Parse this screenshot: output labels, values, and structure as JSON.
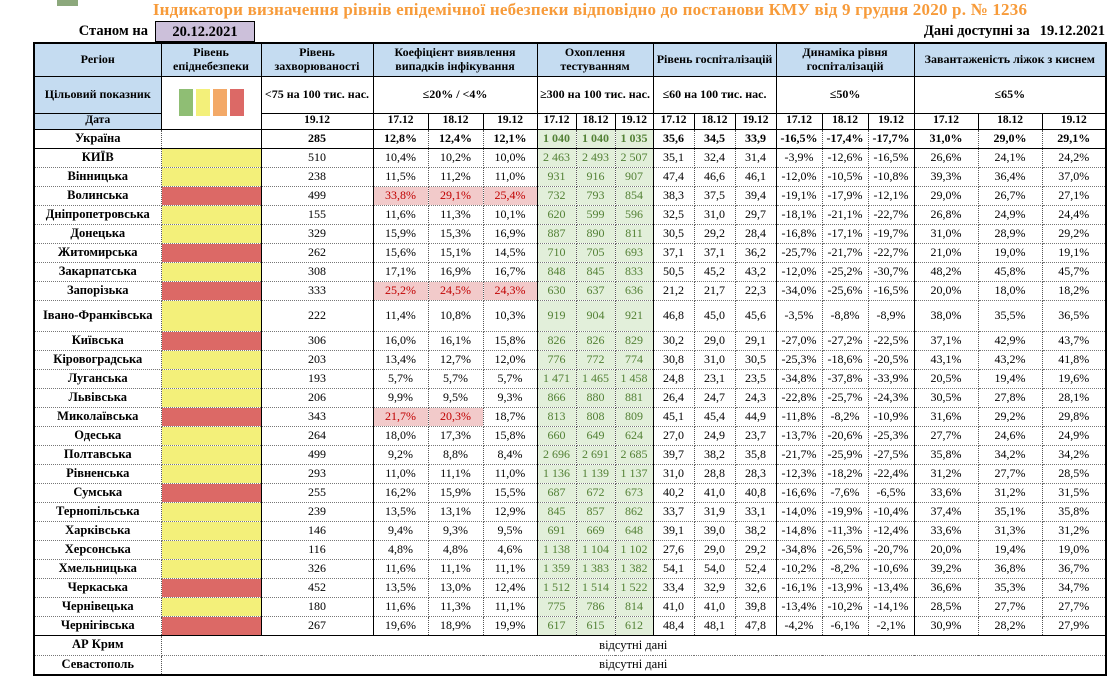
{
  "title": "Індикатори визначення рівнів епідемічної небезпеки відповідно до постанови КМУ від 9 грудня 2020 р. № 1236",
  "as_of": {
    "label": "Станом на",
    "date": "20.12.2021"
  },
  "available": {
    "label": "Дані доступні за",
    "date": "19.12.2021"
  },
  "colors": {
    "header_bg": "#c5dcf1",
    "asof_bg": "#ccc0da",
    "title_orange": "#f79b3a",
    "testing_bg": "#e2efda",
    "testing_text": "#538135",
    "alert_bg": "#f2caca",
    "alert_text": "#c00000",
    "legend": [
      "#8fbe74",
      "#f3f07a",
      "#f3a968",
      "#dc6966"
    ],
    "levels": {
      "yellow": "#f3f07a",
      "red": "#dc6966",
      "none": "#ffffff"
    }
  },
  "header": {
    "col_region": "Регіон",
    "col_target": "Цільовий показник",
    "col_date": "Дата",
    "groups": [
      {
        "title": "Рівень епіднебезпеки"
      },
      {
        "title": "Рівень захворюваності",
        "target": "<75 на 100 тис. нас.",
        "dates": [
          "19.12"
        ]
      },
      {
        "title": "Коефіцієнт виявлення випадків інфікування",
        "target": "≤20% / <4%",
        "dates": [
          "17.12",
          "18.12",
          "19.12"
        ]
      },
      {
        "title": "Охоплення тестуванням",
        "target": "≥300 на 100 тис. нас.",
        "dates": [
          "17.12",
          "18.12",
          "19.12"
        ]
      },
      {
        "title": "Рівень госпіталізацій",
        "target": "≤60 на 100 тис. нас.",
        "dates": [
          "17.12",
          "18.12",
          "19.12"
        ]
      },
      {
        "title": "Динаміка рівня госпіталізацій",
        "target": "≤50%",
        "dates": [
          "17.12",
          "18.12",
          "19.12"
        ]
      },
      {
        "title": "Завантаженість ліжок з киснем",
        "target": "≤65%",
        "dates": [
          "17.12",
          "18.12",
          "19.12"
        ]
      }
    ]
  },
  "rows": [
    {
      "region": "Україна",
      "level": "none",
      "bold": true,
      "inc": "285",
      "det": [
        "12,8%",
        "12,4%",
        "12,1%"
      ],
      "test": [
        "1 040",
        "1 040",
        "1 035"
      ],
      "hosp": [
        "35,6",
        "34,5",
        "33,9"
      ],
      "dyn": [
        "-16,5%",
        "-17,4%",
        "-17,7%"
      ],
      "beds": [
        "31,0%",
        "29,0%",
        "29,1%"
      ]
    },
    {
      "region": "КИЇВ",
      "level": "yellow",
      "inc": "510",
      "det": [
        "10,4%",
        "10,2%",
        "10,0%"
      ],
      "test": [
        "2 463",
        "2 493",
        "2 507"
      ],
      "hosp": [
        "35,1",
        "32,4",
        "31,4"
      ],
      "dyn": [
        "-3,9%",
        "-12,6%",
        "-16,5%"
      ],
      "beds": [
        "26,6%",
        "24,1%",
        "24,2%"
      ]
    },
    {
      "region": "Вінницька",
      "level": "yellow",
      "inc": "238",
      "det": [
        "11,5%",
        "11,2%",
        "11,0%"
      ],
      "test": [
        "931",
        "916",
        "907"
      ],
      "hosp": [
        "47,4",
        "46,6",
        "46,1"
      ],
      "dyn": [
        "-12,0%",
        "-10,5%",
        "-10,8%"
      ],
      "beds": [
        "39,3%",
        "36,4%",
        "37,0%"
      ]
    },
    {
      "region": "Волинська",
      "level": "red",
      "inc": "499",
      "det": [
        "33,8%",
        "29,1%",
        "25,4%"
      ],
      "det_alert": [
        true,
        true,
        true
      ],
      "test": [
        "732",
        "793",
        "854"
      ],
      "hosp": [
        "38,3",
        "37,5",
        "39,4"
      ],
      "dyn": [
        "-19,1%",
        "-17,9%",
        "-12,1%"
      ],
      "beds": [
        "29,0%",
        "26,7%",
        "27,1%"
      ]
    },
    {
      "region": "Дніпропетровська",
      "level": "yellow",
      "inc": "155",
      "det": [
        "11,6%",
        "11,3%",
        "10,1%"
      ],
      "test": [
        "620",
        "599",
        "596"
      ],
      "hosp": [
        "32,5",
        "31,0",
        "29,7"
      ],
      "dyn": [
        "-18,1%",
        "-21,1%",
        "-22,7%"
      ],
      "beds": [
        "26,8%",
        "24,9%",
        "24,4%"
      ]
    },
    {
      "region": "Донецька",
      "level": "yellow",
      "inc": "329",
      "det": [
        "15,9%",
        "15,3%",
        "16,9%"
      ],
      "test": [
        "887",
        "890",
        "811"
      ],
      "hosp": [
        "30,5",
        "29,2",
        "28,4"
      ],
      "dyn": [
        "-16,8%",
        "-17,1%",
        "-19,7%"
      ],
      "beds": [
        "31,0%",
        "28,9%",
        "29,2%"
      ]
    },
    {
      "region": "Житомирська",
      "level": "red",
      "inc": "262",
      "det": [
        "15,6%",
        "15,1%",
        "14,5%"
      ],
      "test": [
        "710",
        "705",
        "693"
      ],
      "hosp": [
        "37,1",
        "37,1",
        "36,2"
      ],
      "dyn": [
        "-25,7%",
        "-21,7%",
        "-22,7%"
      ],
      "beds": [
        "21,0%",
        "19,0%",
        "19,1%"
      ]
    },
    {
      "region": "Закарпатська",
      "level": "yellow",
      "inc": "308",
      "det": [
        "17,1%",
        "16,9%",
        "16,7%"
      ],
      "test": [
        "848",
        "845",
        "833"
      ],
      "hosp": [
        "50,5",
        "45,2",
        "43,2"
      ],
      "dyn": [
        "-12,0%",
        "-25,2%",
        "-30,7%"
      ],
      "beds": [
        "48,2%",
        "45,8%",
        "45,7%"
      ]
    },
    {
      "region": "Запорізька",
      "level": "red",
      "inc": "333",
      "det": [
        "25,2%",
        "24,5%",
        "24,3%"
      ],
      "det_alert": [
        true,
        true,
        true
      ],
      "test": [
        "630",
        "637",
        "636"
      ],
      "hosp": [
        "21,2",
        "21,7",
        "22,3"
      ],
      "dyn": [
        "-34,0%",
        "-25,6%",
        "-16,5%"
      ],
      "beds": [
        "20,0%",
        "18,0%",
        "18,2%"
      ]
    },
    {
      "region": "Івано-Франківська",
      "level": "yellow",
      "tall": true,
      "inc": "222",
      "det": [
        "11,4%",
        "10,8%",
        "10,3%"
      ],
      "test": [
        "919",
        "904",
        "921"
      ],
      "hosp": [
        "46,8",
        "45,0",
        "45,6"
      ],
      "dyn": [
        "-3,5%",
        "-8,8%",
        "-8,9%"
      ],
      "beds": [
        "38,0%",
        "35,5%",
        "36,5%"
      ]
    },
    {
      "region": "Київська",
      "level": "red",
      "inc": "306",
      "det": [
        "16,0%",
        "16,1%",
        "15,8%"
      ],
      "test": [
        "826",
        "826",
        "829"
      ],
      "hosp": [
        "30,2",
        "29,0",
        "29,1"
      ],
      "dyn": [
        "-27,0%",
        "-27,2%",
        "-22,5%"
      ],
      "beds": [
        "37,1%",
        "42,9%",
        "43,7%"
      ]
    },
    {
      "region": "Кіровоградська",
      "level": "yellow",
      "inc": "203",
      "det": [
        "13,4%",
        "12,7%",
        "12,0%"
      ],
      "test": [
        "776",
        "772",
        "774"
      ],
      "hosp": [
        "30,8",
        "31,0",
        "30,5"
      ],
      "dyn": [
        "-25,3%",
        "-18,6%",
        "-20,5%"
      ],
      "beds": [
        "43,1%",
        "43,2%",
        "41,8%"
      ]
    },
    {
      "region": "Луганська",
      "level": "yellow",
      "inc": "193",
      "det": [
        "5,7%",
        "5,7%",
        "5,7%"
      ],
      "test": [
        "1 471",
        "1 465",
        "1 458"
      ],
      "hosp": [
        "24,8",
        "23,1",
        "23,5"
      ],
      "dyn": [
        "-34,8%",
        "-37,8%",
        "-33,9%"
      ],
      "beds": [
        "20,5%",
        "19,4%",
        "19,6%"
      ]
    },
    {
      "region": "Львівська",
      "level": "yellow",
      "inc": "206",
      "det": [
        "9,9%",
        "9,5%",
        "9,3%"
      ],
      "test": [
        "866",
        "880",
        "881"
      ],
      "hosp": [
        "26,4",
        "24,7",
        "24,3"
      ],
      "dyn": [
        "-22,8%",
        "-25,7%",
        "-24,3%"
      ],
      "beds": [
        "30,5%",
        "27,8%",
        "28,1%"
      ]
    },
    {
      "region": "Миколаївська",
      "level": "red",
      "inc": "343",
      "det": [
        "21,7%",
        "20,3%",
        "18,7%"
      ],
      "det_alert": [
        true,
        true,
        false
      ],
      "test": [
        "813",
        "808",
        "809"
      ],
      "hosp": [
        "45,1",
        "45,4",
        "44,9"
      ],
      "dyn": [
        "-11,8%",
        "-8,2%",
        "-10,9%"
      ],
      "beds": [
        "31,6%",
        "29,2%",
        "29,8%"
      ]
    },
    {
      "region": "Одеська",
      "level": "yellow",
      "inc": "264",
      "det": [
        "18,0%",
        "17,3%",
        "15,8%"
      ],
      "test": [
        "660",
        "649",
        "624"
      ],
      "hosp": [
        "27,0",
        "24,9",
        "23,7"
      ],
      "dyn": [
        "-13,7%",
        "-20,6%",
        "-25,3%"
      ],
      "beds": [
        "27,7%",
        "24,6%",
        "24,9%"
      ]
    },
    {
      "region": "Полтавська",
      "level": "yellow",
      "inc": "499",
      "det": [
        "9,2%",
        "8,8%",
        "8,4%"
      ],
      "test": [
        "2 696",
        "2 691",
        "2 685"
      ],
      "hosp": [
        "39,7",
        "38,2",
        "35,8"
      ],
      "dyn": [
        "-21,7%",
        "-25,9%",
        "-27,5%"
      ],
      "beds": [
        "35,8%",
        "34,2%",
        "34,2%"
      ]
    },
    {
      "region": "Рівненська",
      "level": "yellow",
      "inc": "293",
      "det": [
        "11,0%",
        "11,1%",
        "11,0%"
      ],
      "test": [
        "1 136",
        "1 139",
        "1 137"
      ],
      "hosp": [
        "31,0",
        "28,8",
        "28,3"
      ],
      "dyn": [
        "-12,3%",
        "-18,2%",
        "-22,4%"
      ],
      "beds": [
        "31,2%",
        "27,7%",
        "28,5%"
      ]
    },
    {
      "region": "Сумська",
      "level": "red",
      "inc": "255",
      "det": [
        "16,2%",
        "15,9%",
        "15,5%"
      ],
      "test": [
        "687",
        "672",
        "673"
      ],
      "hosp": [
        "40,2",
        "41,0",
        "40,8"
      ],
      "dyn": [
        "-16,6%",
        "-7,6%",
        "-6,5%"
      ],
      "beds": [
        "33,6%",
        "31,2%",
        "31,5%"
      ]
    },
    {
      "region": "Тернопільська",
      "level": "yellow",
      "inc": "239",
      "det": [
        "13,5%",
        "13,1%",
        "12,9%"
      ],
      "test": [
        "845",
        "857",
        "862"
      ],
      "hosp": [
        "33,7",
        "31,9",
        "33,1"
      ],
      "dyn": [
        "-14,0%",
        "-19,9%",
        "-10,4%"
      ],
      "beds": [
        "37,4%",
        "35,1%",
        "35,8%"
      ]
    },
    {
      "region": "Харківська",
      "level": "yellow",
      "inc": "146",
      "det": [
        "9,4%",
        "9,3%",
        "9,5%"
      ],
      "test": [
        "691",
        "669",
        "648"
      ],
      "hosp": [
        "39,1",
        "39,0",
        "38,2"
      ],
      "dyn": [
        "-14,8%",
        "-11,3%",
        "-12,4%"
      ],
      "beds": [
        "33,6%",
        "31,3%",
        "31,2%"
      ]
    },
    {
      "region": "Херсонська",
      "level": "yellow",
      "inc": "116",
      "det": [
        "4,8%",
        "4,8%",
        "4,6%"
      ],
      "test": [
        "1 138",
        "1 104",
        "1 102"
      ],
      "hosp": [
        "27,6",
        "29,0",
        "29,2"
      ],
      "dyn": [
        "-34,8%",
        "-26,5%",
        "-20,7%"
      ],
      "beds": [
        "20,0%",
        "19,4%",
        "19,0%"
      ]
    },
    {
      "region": "Хмельницька",
      "level": "yellow",
      "inc": "326",
      "det": [
        "11,6%",
        "11,1%",
        "11,1%"
      ],
      "test": [
        "1 359",
        "1 383",
        "1 382"
      ],
      "hosp": [
        "54,1",
        "54,0",
        "52,4"
      ],
      "dyn": [
        "-10,2%",
        "-8,2%",
        "-10,6%"
      ],
      "beds": [
        "39,2%",
        "36,8%",
        "36,7%"
      ]
    },
    {
      "region": "Черкаська",
      "level": "red",
      "inc": "452",
      "det": [
        "13,5%",
        "13,0%",
        "12,4%"
      ],
      "test": [
        "1 512",
        "1 514",
        "1 522"
      ],
      "hosp": [
        "33,4",
        "32,9",
        "32,6"
      ],
      "dyn": [
        "-16,1%",
        "-13,9%",
        "-13,4%"
      ],
      "beds": [
        "36,6%",
        "35,3%",
        "34,7%"
      ]
    },
    {
      "region": "Чернівецька",
      "level": "yellow",
      "inc": "180",
      "det": [
        "11,6%",
        "11,3%",
        "11,1%"
      ],
      "test": [
        "775",
        "786",
        "814"
      ],
      "hosp": [
        "41,0",
        "41,0",
        "39,8"
      ],
      "dyn": [
        "-13,4%",
        "-10,2%",
        "-14,1%"
      ],
      "beds": [
        "28,5%",
        "27,7%",
        "27,7%"
      ]
    },
    {
      "region": "Чернігівська",
      "level": "red",
      "inc": "267",
      "det": [
        "19,6%",
        "18,9%",
        "19,9%"
      ],
      "test": [
        "617",
        "615",
        "612"
      ],
      "hosp": [
        "48,4",
        "48,1",
        "47,8"
      ],
      "dyn": [
        "-4,2%",
        "-6,1%",
        "-2,1%"
      ],
      "beds": [
        "30,9%",
        "28,2%",
        "27,9%"
      ]
    }
  ],
  "no_data_rows": [
    {
      "region": "АР Крим",
      "text": "відсутні дані"
    },
    {
      "region": "Севастополь",
      "text": "відсутні дані"
    }
  ]
}
